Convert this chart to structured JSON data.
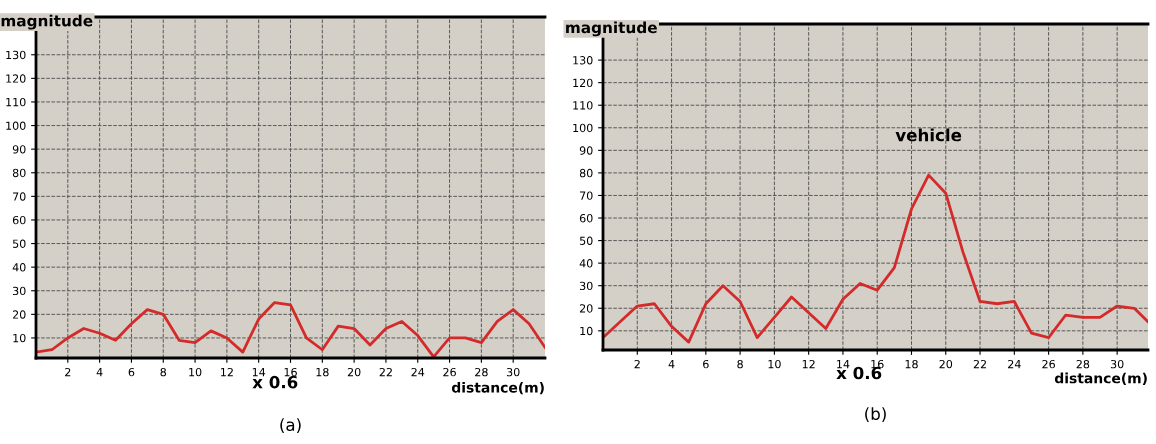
{
  "chart_data": [
    {
      "type": "line",
      "title": "(a)",
      "ylabel": "magnitude",
      "xlabel": "distance(m)",
      "annotations": [
        "x 0.6"
      ],
      "x": [
        0,
        1,
        2,
        3,
        4,
        5,
        6,
        7,
        8,
        9,
        10,
        11,
        12,
        13,
        14,
        15,
        16,
        17,
        18,
        19,
        20,
        21,
        22,
        23,
        24,
        25,
        26,
        27,
        28,
        29,
        30,
        31,
        32
      ],
      "series": [
        {
          "color": "#d42a2a",
          "values": [
            4,
            5,
            10,
            14,
            12,
            9,
            16,
            22,
            20,
            9,
            8,
            13,
            10,
            4,
            18,
            25,
            24,
            10,
            5,
            15,
            14,
            7,
            14,
            17,
            11,
            2,
            10,
            10,
            8,
            17,
            22,
            16,
            6
          ]
        }
      ],
      "xlim": [
        0,
        32
      ],
      "ylim": [
        1.5,
        146
      ],
      "xticks": [
        2,
        4,
        6,
        8,
        10,
        12,
        14,
        16,
        18,
        20,
        22,
        24,
        26,
        28,
        30
      ],
      "yticks": [
        10,
        20,
        30,
        40,
        50,
        60,
        70,
        80,
        90,
        100,
        110,
        120,
        130
      ],
      "grid": true,
      "line_style": "solid",
      "marker": "none"
    },
    {
      "type": "line",
      "title": "(b)",
      "ylabel": "magnitude",
      "xlabel": "distance(m)",
      "annotations": [
        "x 0.6",
        {
          "text": "vehicle",
          "x": 19,
          "y": 79
        }
      ],
      "x": [
        0,
        1,
        2,
        3,
        4,
        5,
        6,
        7,
        8,
        9,
        10,
        11,
        12,
        13,
        14,
        15,
        16,
        17,
        18,
        19,
        20,
        21,
        22,
        23,
        24,
        25,
        26,
        27,
        28,
        29,
        30,
        31,
        31.8
      ],
      "series": [
        {
          "color": "#d42a2a",
          "values": [
            7,
            14,
            21,
            22,
            12,
            5,
            22,
            30,
            23,
            7,
            16,
            25,
            18,
            11,
            24,
            31,
            28,
            38,
            64,
            79,
            71,
            45,
            23,
            22,
            23,
            9,
            7,
            17,
            16,
            16,
            21,
            20,
            14
          ]
        }
      ],
      "xlim": [
        0,
        31.8
      ],
      "ylim": [
        1.5,
        146
      ],
      "xticks": [
        2,
        4,
        6,
        8,
        10,
        12,
        14,
        16,
        18,
        20,
        22,
        24,
        26,
        28,
        30
      ],
      "yticks": [
        10,
        20,
        30,
        40,
        50,
        60,
        70,
        80,
        90,
        100,
        110,
        120,
        130
      ],
      "grid": true,
      "line_style": "solid",
      "marker": "none"
    }
  ]
}
